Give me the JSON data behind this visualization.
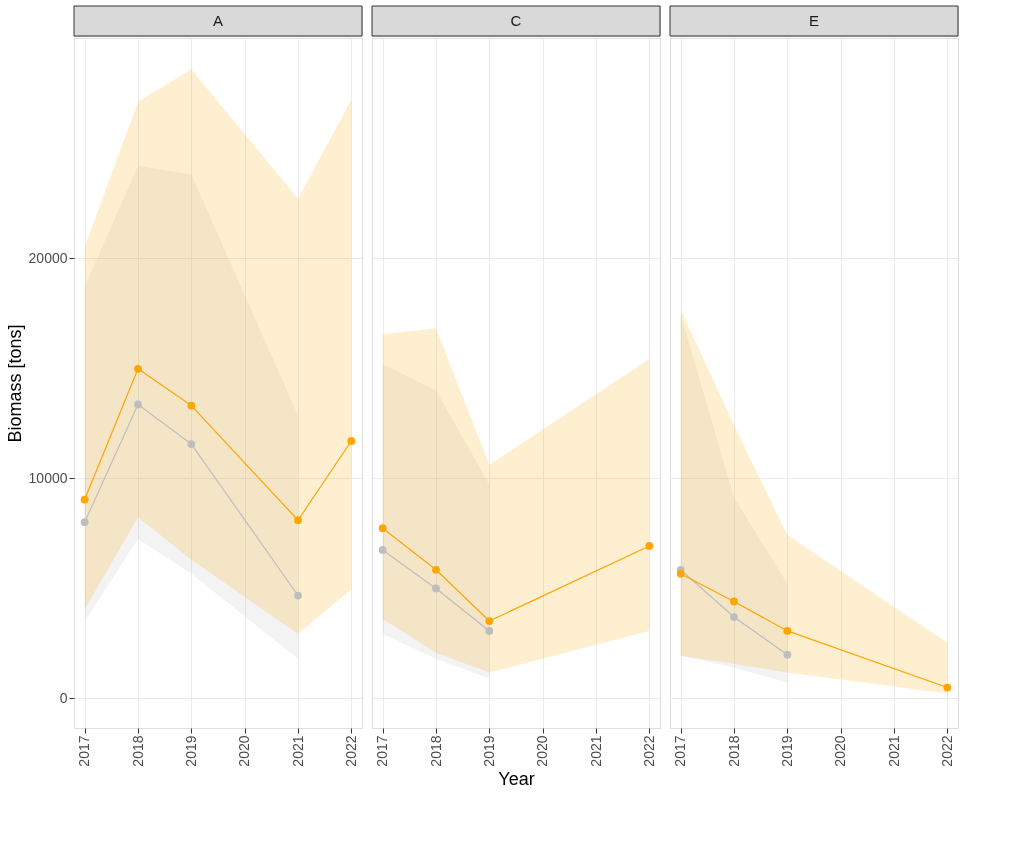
{
  "chart_data": [
    {
      "type": "line",
      "title": "A",
      "ylabel": "Biomass [tons]",
      "xlim": [
        2016.8,
        2022.2
      ],
      "ylim": [
        -1350,
        30000
      ],
      "xticks": [
        2017,
        2018,
        2019,
        2020,
        2021,
        2022
      ],
      "yticks": [
        0,
        10000,
        20000
      ],
      "grid": true,
      "marker": "circle",
      "series": [
        {
          "color": "#bebebe",
          "x": [
            2017,
            2018,
            2019,
            2021
          ],
          "values": [
            8000,
            13350,
            11550,
            4670
          ],
          "lower": [
            3500,
            7240,
            5660,
            1800
          ],
          "upper": [
            18700,
            24180,
            23800,
            12850
          ]
        },
        {
          "color": "#ffa500",
          "x": [
            2017,
            2018,
            2019,
            2021,
            2022
          ],
          "values": [
            9030,
            14970,
            13300,
            8090,
            11690
          ],
          "lower": [
            4040,
            8220,
            6290,
            2920,
            4940
          ],
          "upper": [
            20500,
            27100,
            28580,
            22700,
            27190
          ]
        }
      ]
    },
    {
      "type": "line",
      "title": "C",
      "xlabel": "Year",
      "xlim": [
        2016.8,
        2022.2
      ],
      "ylim": [
        -1350,
        30000
      ],
      "xticks": [
        2017,
        2018,
        2019,
        2020,
        2021,
        2022
      ],
      "yticks": [
        0,
        10000,
        20000
      ],
      "tick_labels": "x",
      "grid": true,
      "marker": "circle",
      "series": [
        {
          "color": "#bebebe",
          "x": [
            2017,
            2018,
            2019
          ],
          "values": [
            6740,
            4990,
            3060
          ],
          "lower": [
            2920,
            1800,
            900
          ],
          "upper": [
            15190,
            13980,
            9710
          ]
        },
        {
          "color": "#ffa500",
          "x": [
            2017,
            2018,
            2019,
            2022
          ],
          "values": [
            7730,
            5840,
            3510,
            6920
          ],
          "lower": [
            3600,
            2070,
            1170,
            3060
          ],
          "upper": [
            16540,
            16810,
            10610,
            15420
          ]
        }
      ]
    },
    {
      "type": "line",
      "title": "E",
      "xlim": [
        2016.8,
        2022.2
      ],
      "ylim": [
        -1350,
        30000
      ],
      "xticks": [
        2017,
        2018,
        2019,
        2020,
        2021,
        2022
      ],
      "yticks": [
        0,
        10000,
        20000
      ],
      "tick_labels": "x",
      "grid": true,
      "marker": "circle",
      "series": [
        {
          "color": "#bebebe",
          "x": [
            2017,
            2018,
            2019
          ],
          "values": [
            5840,
            3690,
            1980
          ],
          "lower": [
            1930,
            1390,
            720
          ],
          "upper": [
            17440,
            9120,
            5210
          ]
        },
        {
          "color": "#ffa500",
          "x": [
            2017,
            2018,
            2019,
            2022
          ],
          "values": [
            5660,
            4400,
            3060,
            490
          ],
          "lower": [
            1930,
            1570,
            1170,
            220
          ],
          "upper": [
            17660,
            12400,
            7420,
            2520
          ]
        }
      ]
    }
  ]
}
